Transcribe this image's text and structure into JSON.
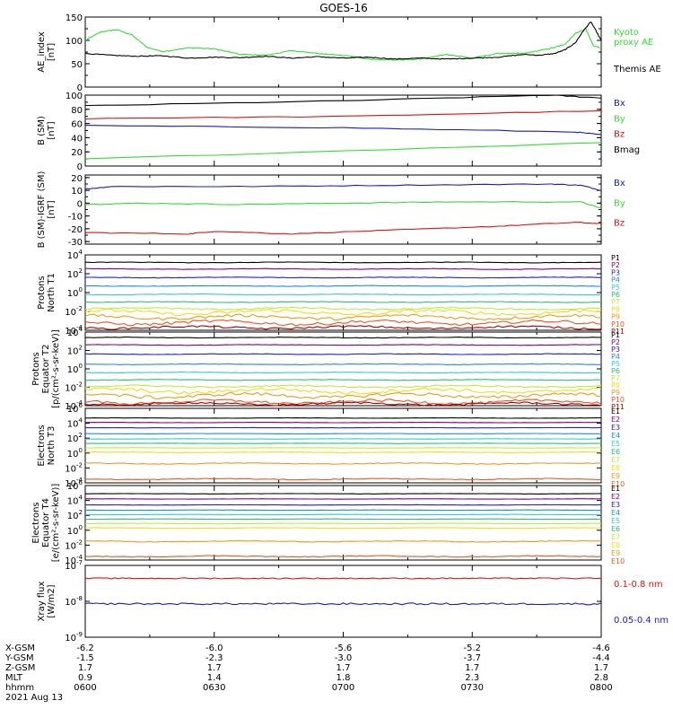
{
  "title": "GOES-16",
  "colors": {
    "black": "#000000",
    "blue": "#1a1acc",
    "green": "#33dd33",
    "red": "#dd1111",
    "P": [
      "#000000",
      "#880088",
      "#2222cc",
      "#2288ee",
      "#33cccc",
      "#33bb77",
      "#bbee33",
      "#eedd22",
      "#ee9922",
      "#ee5522",
      "#aa0000"
    ],
    "E": [
      "#000000",
      "#880088",
      "#2222cc",
      "#2288ee",
      "#33cccc",
      "#33bb77",
      "#bbee33",
      "#eedd22",
      "#ee9922",
      "#ee5522",
      "#aa0000"
    ]
  },
  "chart_data": [
    {
      "type": "line",
      "ylabel": [
        "AE_index",
        "[nT]"
      ],
      "ylim": [
        0,
        150
      ],
      "yticks": [
        {
          "v": 0,
          "t": "0"
        },
        {
          "v": 50,
          "t": "50"
        },
        {
          "v": 100,
          "t": "100"
        },
        {
          "v": 150,
          "t": "150"
        }
      ],
      "legend": [
        {
          "text": "Kyoto",
          "color": "green"
        },
        {
          "text": "proxy AE",
          "color": "green"
        },
        {
          "text": "",
          "color": "black"
        },
        {
          "text": "Themis AE",
          "color": "black"
        }
      ],
      "series": [
        {
          "name": "Kyoto proxy AE",
          "color": "green",
          "x": [
            0,
            0.03,
            0.06,
            0.09,
            0.12,
            0.15,
            0.2,
            0.25,
            0.3,
            0.35,
            0.4,
            0.45,
            0.5,
            0.55,
            0.6,
            0.65,
            0.7,
            0.75,
            0.8,
            0.85,
            0.88,
            0.91,
            0.93,
            0.95,
            0.97,
            0.985,
            1
          ],
          "y": [
            100,
            118,
            123,
            112,
            85,
            76,
            84,
            82,
            70,
            68,
            78,
            72,
            68,
            60,
            58,
            60,
            70,
            62,
            72,
            72,
            78,
            85,
            92,
            115,
            125,
            88,
            84
          ]
        },
        {
          "name": "Themis AE",
          "color": "black",
          "x": [
            0,
            0.05,
            0.1,
            0.15,
            0.2,
            0.25,
            0.3,
            0.35,
            0.4,
            0.45,
            0.5,
            0.55,
            0.6,
            0.65,
            0.7,
            0.75,
            0.8,
            0.85,
            0.88,
            0.91,
            0.93,
            0.95,
            0.965,
            0.98,
            1
          ],
          "y": [
            72,
            68,
            66,
            67,
            62,
            64,
            63,
            66,
            62,
            65,
            62,
            64,
            60,
            62,
            60,
            62,
            64,
            70,
            68,
            72,
            80,
            95,
            120,
            140,
            100
          ]
        }
      ]
    },
    {
      "type": "line",
      "ylabel": [
        "B (SM)",
        "[nT]"
      ],
      "ylim": [
        0,
        100
      ],
      "yticks": [
        {
          "v": 0,
          "t": "0"
        },
        {
          "v": 20,
          "t": "20"
        },
        {
          "v": 40,
          "t": "40"
        },
        {
          "v": 60,
          "t": "60"
        },
        {
          "v": 80,
          "t": "80"
        },
        {
          "v": 100,
          "t": "100"
        }
      ],
      "legend": [
        {
          "text": "Bx",
          "color": "blue"
        },
        {
          "text": "By",
          "color": "green"
        },
        {
          "text": "Bz",
          "color": "red"
        },
        {
          "text": "Bmag",
          "color": "black"
        }
      ],
      "series": [
        {
          "name": "Bmag",
          "color": "black",
          "x": [
            0,
            0.5,
            0.9,
            1
          ],
          "y": [
            85,
            92,
            100,
            96
          ]
        },
        {
          "name": "Bz",
          "color": "red",
          "x": [
            0,
            0.5,
            1
          ],
          "y": [
            67,
            70,
            78
          ]
        },
        {
          "name": "Bx",
          "color": "blue",
          "x": [
            0,
            0.5,
            0.95,
            1
          ],
          "y": [
            57,
            54,
            48,
            44
          ]
        },
        {
          "name": "By",
          "color": "green",
          "x": [
            0,
            1
          ],
          "y": [
            10,
            33
          ]
        }
      ]
    },
    {
      "type": "line",
      "ylabel": [
        "B (SM)-IGRF (SM)",
        "[nT]"
      ],
      "ylim": [
        -32,
        22
      ],
      "yticks": [
        {
          "v": -30,
          "t": "-30"
        },
        {
          "v": -20,
          "t": "-20"
        },
        {
          "v": -10,
          "t": "-10"
        },
        {
          "v": 0,
          "t": "0"
        },
        {
          "v": 10,
          "t": "10"
        },
        {
          "v": 20,
          "t": "20"
        }
      ],
      "legend": [
        {
          "text": "Bx",
          "color": "blue"
        },
        {
          "text": "By",
          "color": "green"
        },
        {
          "text": "Bz",
          "color": "red"
        }
      ],
      "series": [
        {
          "name": "Bx",
          "color": "blue",
          "x": [
            0,
            0.05,
            0.3,
            0.6,
            0.9,
            0.96,
            1
          ],
          "y": [
            11,
            13,
            13,
            14,
            15,
            14,
            10
          ]
        },
        {
          "name": "By",
          "color": "green",
          "x": [
            0,
            0.1,
            0.3,
            0.5,
            0.7,
            0.96,
            1
          ],
          "y": [
            -1,
            0,
            -1,
            0,
            1,
            1,
            -4
          ]
        },
        {
          "name": "Bz",
          "color": "red",
          "x": [
            0,
            0.2,
            0.25,
            0.4,
            0.6,
            0.8,
            0.95,
            1
          ],
          "y": [
            -23,
            -24,
            -22,
            -24,
            -21,
            -18,
            -15,
            -16
          ]
        }
      ]
    },
    {
      "type": "line",
      "scale": "log",
      "ylabel": [
        "Protons",
        "North T1"
      ],
      "ylim": [
        -4,
        4
      ],
      "yticks": [
        {
          "v": -4,
          "t": "10^-4"
        },
        {
          "v": -2,
          "t": "10^-2"
        },
        {
          "v": 0,
          "t": "10^0"
        },
        {
          "v": 2,
          "t": "10^2"
        },
        {
          "v": 4,
          "t": "10^4"
        }
      ],
      "legend_group": "P",
      "legend": [
        "P1",
        "P2",
        "P3",
        "P4",
        "P5",
        "P6",
        "P7",
        "P8",
        "P9",
        "P10",
        "P11"
      ],
      "levels": [
        3.2,
        2.5,
        1.6,
        0.7,
        -0.2,
        -1.0,
        -1.7,
        -2.1,
        -2.6,
        -3.2,
        -3.7
      ],
      "noise": [
        0.05,
        0.05,
        0.05,
        0.05,
        0.05,
        0.06,
        0.15,
        0.35,
        0.3,
        0.3,
        0.2
      ]
    },
    {
      "type": "line",
      "scale": "log",
      "ylabel": [
        "Protons",
        "Equator T2",
        "[p/(cm²-s-sr-keV)]"
      ],
      "ylim": [
        -4,
        4
      ],
      "yticks": [
        {
          "v": -4,
          "t": "10^-4"
        },
        {
          "v": -2,
          "t": "10^-2"
        },
        {
          "v": 0,
          "t": "10^0"
        },
        {
          "v": 2,
          "t": "10^2"
        },
        {
          "v": 4,
          "t": "10^4"
        }
      ],
      "legend_group": "P",
      "legend": [
        "P1",
        "P2",
        "P3",
        "P4",
        "P5",
        "P6",
        "P7",
        "P8",
        "P9",
        "P10",
        "P11"
      ],
      "levels": [
        3.4,
        2.6,
        1.6,
        0.5,
        -0.4,
        -1.2,
        -1.9,
        -2.4,
        -2.9,
        -3.6,
        -3.8
      ],
      "noise": [
        0.05,
        0.05,
        0.05,
        0.05,
        0.05,
        0.06,
        0.15,
        0.35,
        0.35,
        0.3,
        0.2
      ]
    },
    {
      "type": "line",
      "scale": "log",
      "ylabel": [
        "Electrons",
        "North T3"
      ],
      "ylim": [
        -4,
        6
      ],
      "yticks": [
        {
          "v": -4,
          "t": "10^-4"
        },
        {
          "v": -2,
          "t": "10^-2"
        },
        {
          "v": 0,
          "t": "10^0"
        },
        {
          "v": 2,
          "t": "10^2"
        },
        {
          "v": 4,
          "t": "10^4"
        },
        {
          "v": 6,
          "t": "10^6"
        }
      ],
      "legend_group": "E",
      "legend": [
        "E1",
        "E2",
        "E3",
        "E4",
        "E5",
        "E6",
        "E7",
        "E8",
        "E9",
        "E10"
      ],
      "levels": [
        4.7,
        4.1,
        3.4,
        2.6,
        1.9,
        1.3,
        0.7,
        0.1,
        -1.4,
        -3.5
      ],
      "noise": [
        0.03,
        0.03,
        0.03,
        0.03,
        0.03,
        0.03,
        0.04,
        0.05,
        0.1,
        0.1
      ]
    },
    {
      "type": "line",
      "scale": "log",
      "ylabel": [
        "Electrons",
        "Equator T4",
        "[e/(cm²-s-sr-keV)]"
      ],
      "ylim": [
        -4,
        6
      ],
      "yticks": [
        {
          "v": -4,
          "t": "10^-4"
        },
        {
          "v": -2,
          "t": "10^-2"
        },
        {
          "v": 0,
          "t": "10^0"
        },
        {
          "v": 2,
          "t": "10^2"
        },
        {
          "v": 4,
          "t": "10^4"
        },
        {
          "v": 6,
          "t": "10^6"
        }
      ],
      "legend_group": "E",
      "legend": [
        "E1",
        "E2",
        "E3",
        "E4",
        "E5",
        "E6",
        "E7",
        "E8",
        "E9",
        "E10"
      ],
      "levels": [
        4.9,
        4.2,
        3.4,
        2.7,
        2.1,
        1.5,
        0.9,
        0.3,
        -1.5,
        -3.5
      ],
      "noise": [
        0.03,
        0.03,
        0.03,
        0.03,
        0.03,
        0.03,
        0.04,
        0.05,
        0.1,
        0.1
      ]
    },
    {
      "type": "line",
      "scale": "log",
      "ylabel": [
        "Xray flux",
        "[W/m2]"
      ],
      "ylim": [
        -9,
        -7
      ],
      "yticks": [
        {
          "v": -9,
          "t": "10^-9"
        },
        {
          "v": -8,
          "t": "10^-8"
        },
        {
          "v": -7,
          "t": "10^-7"
        }
      ],
      "legend": [
        {
          "text": "0.1-0.8 nm",
          "color": "red"
        },
        {
          "text": "0.05-0.4 nm",
          "color": "blue"
        }
      ],
      "series_levels": [
        {
          "name": "0.1-0.8 nm",
          "color": "red",
          "level": -7.36,
          "noise": 0.03
        },
        {
          "name": "0.05-0.4 nm",
          "color": "blue",
          "level": -8.07,
          "noise": 0.05
        }
      ]
    }
  ],
  "xaxis": {
    "rows": [
      {
        "label": "X-GSM",
        "values": [
          "-6.2",
          "-6.0",
          "-5.6",
          "-5.2",
          "-4.6"
        ]
      },
      {
        "label": "Y-GSM",
        "values": [
          "-1.5",
          "-2.3",
          "-3.0",
          "-3.7",
          "-4.4"
        ]
      },
      {
        "label": "Z-GSM",
        "values": [
          "1.7",
          "1.7",
          "1.7",
          "1.7",
          "1.7"
        ]
      },
      {
        "label": "MLT",
        "values": [
          "0.9",
          "1.4",
          "1.8",
          "2.3",
          "2.8"
        ]
      },
      {
        "label": "hhmm",
        "values": [
          "0600",
          "0630",
          "0700",
          "0730",
          "0800"
        ]
      }
    ],
    "date": "2021 Aug 13"
  }
}
